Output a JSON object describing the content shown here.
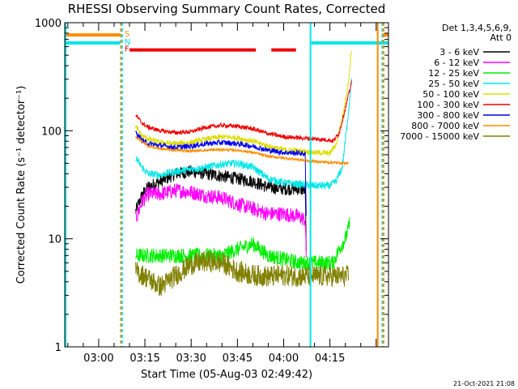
{
  "chart_data": {
    "type": "line",
    "title": "RHESSI Observing Summary Count Rates, Corrected",
    "xlabel": "Start Time (05-Aug-03 02:49:42)",
    "ylabel": "Corrected Count Rate (s⁻¹ detector⁻¹)",
    "yscale": "log",
    "ylim": [
      1,
      1000
    ],
    "xlim_minutes": [
      -11,
      94
    ],
    "y_ticks": [
      {
        "value": 1,
        "label": "1"
      },
      {
        "value": 10,
        "label": "10"
      },
      {
        "value": 100,
        "label": "100"
      },
      {
        "value": 1000,
        "label": "1000"
      }
    ],
    "x_ticks": [
      {
        "minute": 0,
        "label": "03:00"
      },
      {
        "minute": 15,
        "label": "03:15"
      },
      {
        "minute": 30,
        "label": "03:30"
      },
      {
        "minute": 45,
        "label": "03:45"
      },
      {
        "minute": 60,
        "label": "04:00"
      },
      {
        "minute": 75,
        "label": "04:15"
      }
    ],
    "legend_title": [
      "Det 1,3,4,5,6,9,",
      "Att 0"
    ],
    "series": [
      {
        "name": "3 - 6 keV",
        "color": "#000000",
        "noise": 0.06,
        "points": [
          [
            12,
            18
          ],
          [
            14,
            25
          ],
          [
            16,
            30
          ],
          [
            20,
            34
          ],
          [
            25,
            40
          ],
          [
            30,
            42
          ],
          [
            35,
            40
          ],
          [
            40,
            38
          ],
          [
            45,
            36
          ],
          [
            50,
            34
          ],
          [
            55,
            30
          ],
          [
            60,
            29
          ],
          [
            65,
            29
          ],
          [
            67,
            28
          ],
          [
            67.4,
            6
          ]
        ]
      },
      {
        "name": "6 - 12 keV",
        "color": "#ff00ff",
        "noise": 0.07,
        "points": [
          [
            12,
            15
          ],
          [
            14,
            22
          ],
          [
            16,
            26
          ],
          [
            20,
            26
          ],
          [
            25,
            28
          ],
          [
            30,
            27
          ],
          [
            35,
            25
          ],
          [
            40,
            24
          ],
          [
            45,
            21
          ],
          [
            50,
            19
          ],
          [
            55,
            17
          ],
          [
            60,
            17
          ],
          [
            65,
            16
          ],
          [
            67,
            15
          ],
          [
            67.4,
            5
          ]
        ]
      },
      {
        "name": "12 - 25 keV",
        "color": "#00ee00",
        "noise": 0.07,
        "points": [
          [
            12,
            7
          ],
          [
            20,
            7
          ],
          [
            30,
            7
          ],
          [
            40,
            7
          ],
          [
            45,
            8
          ],
          [
            50,
            9
          ],
          [
            55,
            7
          ],
          [
            60,
            6.5
          ],
          [
            65,
            6
          ],
          [
            70,
            6
          ],
          [
            76,
            6
          ],
          [
            78,
            8
          ],
          [
            80,
            10
          ],
          [
            81.5,
            14
          ]
        ]
      },
      {
        "name": "25 - 50 keV",
        "color": "#00e6e6",
        "noise": 0.035,
        "points": [
          [
            12,
            56
          ],
          [
            14,
            46
          ],
          [
            16,
            40
          ],
          [
            20,
            39
          ],
          [
            25,
            42
          ],
          [
            30,
            44
          ],
          [
            35,
            46
          ],
          [
            40,
            49
          ],
          [
            45,
            50
          ],
          [
            50,
            46
          ],
          [
            55,
            36
          ],
          [
            60,
            33
          ],
          [
            65,
            32
          ],
          [
            70,
            31
          ],
          [
            75,
            31
          ],
          [
            77,
            34
          ],
          [
            79,
            46
          ],
          [
            80,
            80
          ],
          [
            81,
            150
          ],
          [
            82,
            300
          ]
        ]
      },
      {
        "name": "50 - 100 keV",
        "color": "#dddd00",
        "noise": 0.025,
        "points": [
          [
            12,
            110
          ],
          [
            14,
            90
          ],
          [
            16,
            84
          ],
          [
            20,
            78
          ],
          [
            25,
            76
          ],
          [
            30,
            78
          ],
          [
            35,
            84
          ],
          [
            40,
            88
          ],
          [
            45,
            86
          ],
          [
            50,
            80
          ],
          [
            55,
            72
          ],
          [
            60,
            67
          ],
          [
            65,
            65
          ],
          [
            70,
            63
          ],
          [
            75,
            62
          ],
          [
            77,
            75
          ],
          [
            79,
            130
          ],
          [
            81,
            280
          ],
          [
            82,
            560
          ]
        ]
      },
      {
        "name": "100 - 300 keV",
        "color": "#ee0000",
        "noise": 0.02,
        "points": [
          [
            12,
            140
          ],
          [
            14,
            118
          ],
          [
            16,
            108
          ],
          [
            20,
            100
          ],
          [
            25,
            96
          ],
          [
            30,
            98
          ],
          [
            35,
            108
          ],
          [
            40,
            112
          ],
          [
            45,
            110
          ],
          [
            50,
            104
          ],
          [
            55,
            94
          ],
          [
            60,
            88
          ],
          [
            65,
            86
          ],
          [
            70,
            84
          ],
          [
            75,
            82
          ],
          [
            76,
            80
          ],
          [
            78,
            95
          ],
          [
            80,
            160
          ],
          [
            82,
            280
          ]
        ]
      },
      {
        "name": "300 - 800 keV",
        "color": "#0000ee",
        "noise": 0.025,
        "points": [
          [
            12,
            97
          ],
          [
            14,
            82
          ],
          [
            16,
            76
          ],
          [
            20,
            73
          ],
          [
            25,
            70
          ],
          [
            30,
            72
          ],
          [
            35,
            76
          ],
          [
            40,
            78
          ],
          [
            45,
            76
          ],
          [
            50,
            72
          ],
          [
            55,
            66
          ],
          [
            60,
            63
          ],
          [
            65,
            62
          ],
          [
            67,
            61
          ],
          [
            67.4,
            10
          ]
        ]
      },
      {
        "name": "800 - 7000 keV",
        "color": "#ff8c00",
        "noise": 0.012,
        "points": [
          [
            12,
            88
          ],
          [
            14,
            80
          ],
          [
            16,
            72
          ],
          [
            20,
            68
          ],
          [
            25,
            66
          ],
          [
            30,
            65
          ],
          [
            35,
            66
          ],
          [
            40,
            67
          ],
          [
            45,
            66
          ],
          [
            50,
            63
          ],
          [
            55,
            58
          ],
          [
            60,
            56
          ],
          [
            65,
            54
          ],
          [
            70,
            52
          ],
          [
            75,
            51
          ],
          [
            81,
            50
          ]
        ]
      },
      {
        "name": "7000 - 15000 keV",
        "color": "#808000",
        "noise": 0.1,
        "points": [
          [
            12,
            5
          ],
          [
            15,
            4.5
          ],
          [
            20,
            3.6
          ],
          [
            25,
            4.6
          ],
          [
            30,
            5.8
          ],
          [
            35,
            6.2
          ],
          [
            40,
            6
          ],
          [
            45,
            5
          ],
          [
            50,
            4.6
          ],
          [
            55,
            4.5
          ],
          [
            60,
            4.6
          ],
          [
            65,
            4.5
          ],
          [
            70,
            4.5
          ],
          [
            75,
            4.5
          ],
          [
            81,
            4.5
          ]
        ]
      }
    ],
    "flags": [
      {
        "label": "S",
        "color": "#ff8c00"
      },
      {
        "label": "N",
        "color": "#00e6e6"
      },
      {
        "label": "F",
        "color": "#ee0000"
      }
    ],
    "saa_attenuator_bars": [
      {
        "color": "#ff8c00",
        "value": 770,
        "ranges": [
          [
            -11,
            7
          ],
          [
            92,
            94
          ]
        ]
      },
      {
        "color": "#00e6e6",
        "value": 650,
        "ranges": [
          [
            -11,
            7
          ],
          [
            69,
            94
          ]
        ]
      },
      {
        "color": "#ee0000",
        "value": 560,
        "ranges": [
          [
            10,
            51
          ],
          [
            56,
            64
          ]
        ]
      }
    ],
    "vertical_markers": [
      {
        "color": "#00e6e6",
        "style": "solid",
        "minute": -10.7
      },
      {
        "color": "#ff8c00",
        "style": "dashed",
        "minute": 7.2
      },
      {
        "color": "#00e6e6",
        "style": "dashed",
        "minute": 7.6
      },
      {
        "color": "#00e6e6",
        "style": "solid",
        "minute": 68.7
      },
      {
        "color": "#ff8c00",
        "style": "solid",
        "minute": 90.5
      },
      {
        "color": "#00e6e6",
        "style": "dashed",
        "minute": 92.0
      },
      {
        "color": "#ff8c00",
        "style": "dashed",
        "minute": 92.4
      }
    ],
    "footer_date": "21-Oct-2021 21:08"
  }
}
